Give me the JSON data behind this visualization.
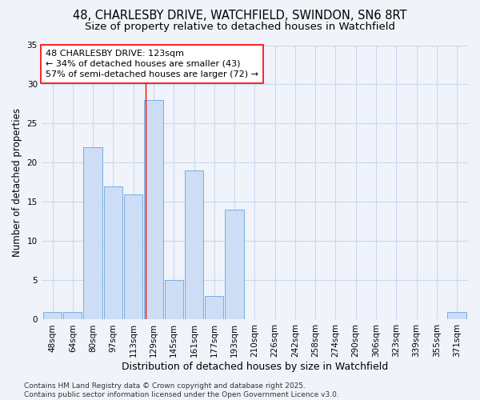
{
  "title_line1": "48, CHARLESBY DRIVE, WATCHFIELD, SWINDON, SN6 8RT",
  "title_line2": "Size of property relative to detached houses in Watchfield",
  "xlabel": "Distribution of detached houses by size in Watchfield",
  "ylabel": "Number of detached properties",
  "categories": [
    "48sqm",
    "64sqm",
    "80sqm",
    "97sqm",
    "113sqm",
    "129sqm",
    "145sqm",
    "161sqm",
    "177sqm",
    "193sqm",
    "210sqm",
    "226sqm",
    "242sqm",
    "258sqm",
    "274sqm",
    "290sqm",
    "306sqm",
    "323sqm",
    "339sqm",
    "355sqm",
    "371sqm"
  ],
  "values": [
    1,
    1,
    22,
    17,
    16,
    28,
    5,
    19,
    3,
    14,
    0,
    0,
    0,
    0,
    0,
    0,
    0,
    0,
    0,
    0,
    1
  ],
  "bar_color": "#ccddf5",
  "bar_edge_color": "#7aaddd",
  "bar_edge_width": 0.7,
  "red_line_index": 4.62,
  "annotation_line1": "48 CHARLESBY DRIVE: 123sqm",
  "annotation_line2": "← 34% of detached houses are smaller (43)",
  "annotation_line3": "57% of semi-detached houses are larger (72) →",
  "annotation_box_color": "white",
  "annotation_box_edge_color": "red",
  "ylim": [
    0,
    35
  ],
  "yticks": [
    0,
    5,
    10,
    15,
    20,
    25,
    30,
    35
  ],
  "background_color": "#f0f4fa",
  "grid_color": "#c8d8ee",
  "footnote": "Contains HM Land Registry data © Crown copyright and database right 2025.\nContains public sector information licensed under the Open Government Licence v3.0.",
  "title_fontsize": 10.5,
  "subtitle_fontsize": 9.5,
  "tick_fontsize": 7.5,
  "ylabel_fontsize": 8.5,
  "xlabel_fontsize": 9,
  "annotation_fontsize": 8,
  "footnote_fontsize": 6.5
}
